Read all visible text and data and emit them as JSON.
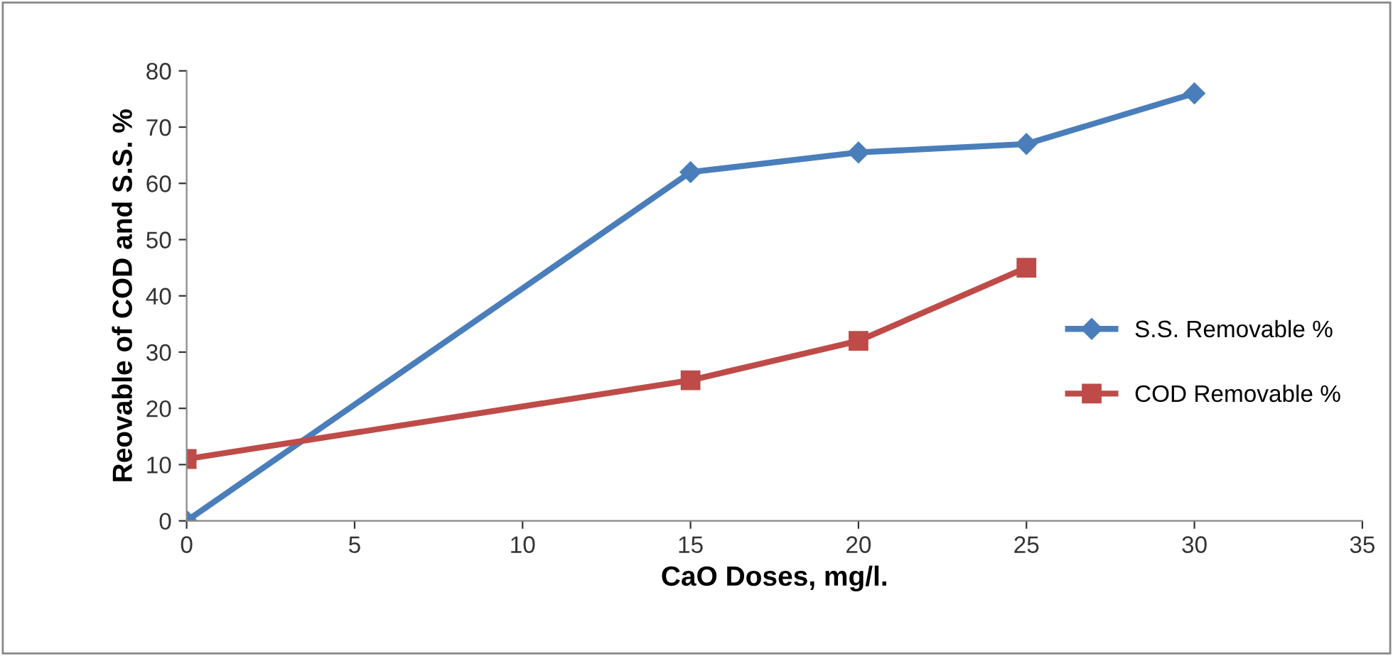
{
  "chart_data": {
    "type": "line",
    "xlabel": "CaO Doses, mg/l.",
    "ylabel": "Reovable of COD and S.S. %",
    "xlim": [
      0,
      35
    ],
    "xticks": [
      0,
      5,
      10,
      15,
      20,
      25,
      30,
      35
    ],
    "ylim": [
      0,
      80
    ],
    "yticks": [
      0,
      10,
      20,
      30,
      40,
      50,
      60,
      70,
      80
    ],
    "grid": false,
    "legend": "right",
    "line_style": "solid",
    "series": [
      {
        "name": "S.S. Removable %",
        "color": "#4a7ebb",
        "marker": "diamond",
        "x": [
          0,
          15,
          20,
          25,
          30
        ],
        "values": [
          0,
          62,
          65.5,
          67,
          76
        ]
      },
      {
        "name": "COD Removable %",
        "color": "#be4b48",
        "marker": "square",
        "x": [
          0,
          15,
          20,
          25
        ],
        "values": [
          11,
          25,
          32,
          45
        ]
      }
    ]
  }
}
